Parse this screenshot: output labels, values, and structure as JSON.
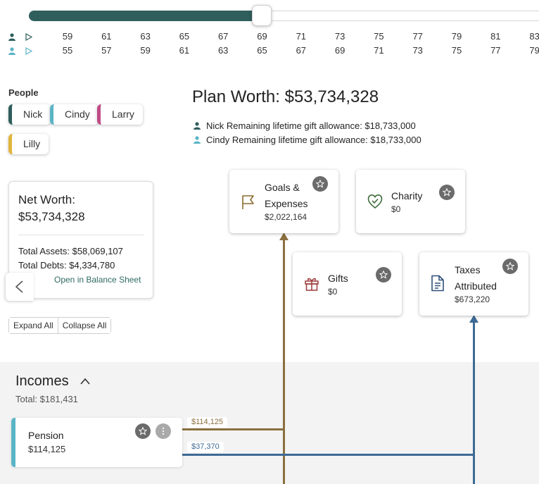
{
  "timeline": {
    "progress": 0.447,
    "person1_ages": [
      "59",
      "61",
      "63",
      "65",
      "67",
      "69",
      "71",
      "73",
      "75",
      "77",
      "79",
      "81",
      "83"
    ],
    "person2_ages": [
      "55",
      "57",
      "59",
      "61",
      "63",
      "65",
      "67",
      "69",
      "71",
      "73",
      "75",
      "77",
      "79"
    ]
  },
  "people": {
    "title": "People",
    "chips": [
      {
        "name": "Nick",
        "color": "#2f5e5c"
      },
      {
        "name": "Cindy",
        "color": "#5bb4c6"
      },
      {
        "name": "Larry",
        "color": "#c14b86"
      },
      {
        "name": "Lilly",
        "color": "#e0b53c"
      }
    ]
  },
  "net_worth": {
    "title": "Net Worth:",
    "value": "$53,734,328",
    "total_assets": "Total Assets: $58,069,107",
    "total_debts": "Total Debts: $4,334,780",
    "link": "Open in Balance Sheet"
  },
  "controls": {
    "expand_all": "Expand All",
    "collapse_all": "Collapse All"
  },
  "plan": {
    "title": "Plan Worth: $53,734,328",
    "allowances": [
      {
        "text": "Nick Remaining lifetime gift allowance: $18,733,000",
        "icon_color": "#2f5e5c"
      },
      {
        "text": "Cindy Remaining lifetime gift allowance: $18,733,000",
        "icon_color": "#5bb4c6"
      }
    ]
  },
  "cards": {
    "goals": {
      "line1": "Goals &",
      "line2": "Expenses",
      "value": "$2,022,164",
      "icon": "flag-icon",
      "color": "#8a6a2f"
    },
    "charity": {
      "label": "Charity",
      "value": "$0",
      "icon": "heart-check-icon",
      "color": "#3e6b3a"
    },
    "gifts": {
      "label": "Gifts",
      "value": "$0",
      "icon": "gift-icon",
      "color": "#9c3a3a"
    },
    "taxes": {
      "line1": "Taxes",
      "line2": "Attributed",
      "value": "$673,220",
      "icon": "document-icon",
      "color": "#2f4f7a"
    }
  },
  "incomes": {
    "title": "Incomes",
    "total": "Total: $181,431",
    "items": [
      {
        "label": "Pension",
        "value": "$114,125"
      }
    ],
    "flows": [
      {
        "amount": "$114,125",
        "color": "#8a6f3f"
      },
      {
        "amount": "$37,370",
        "color": "#3d6a94"
      }
    ]
  }
}
